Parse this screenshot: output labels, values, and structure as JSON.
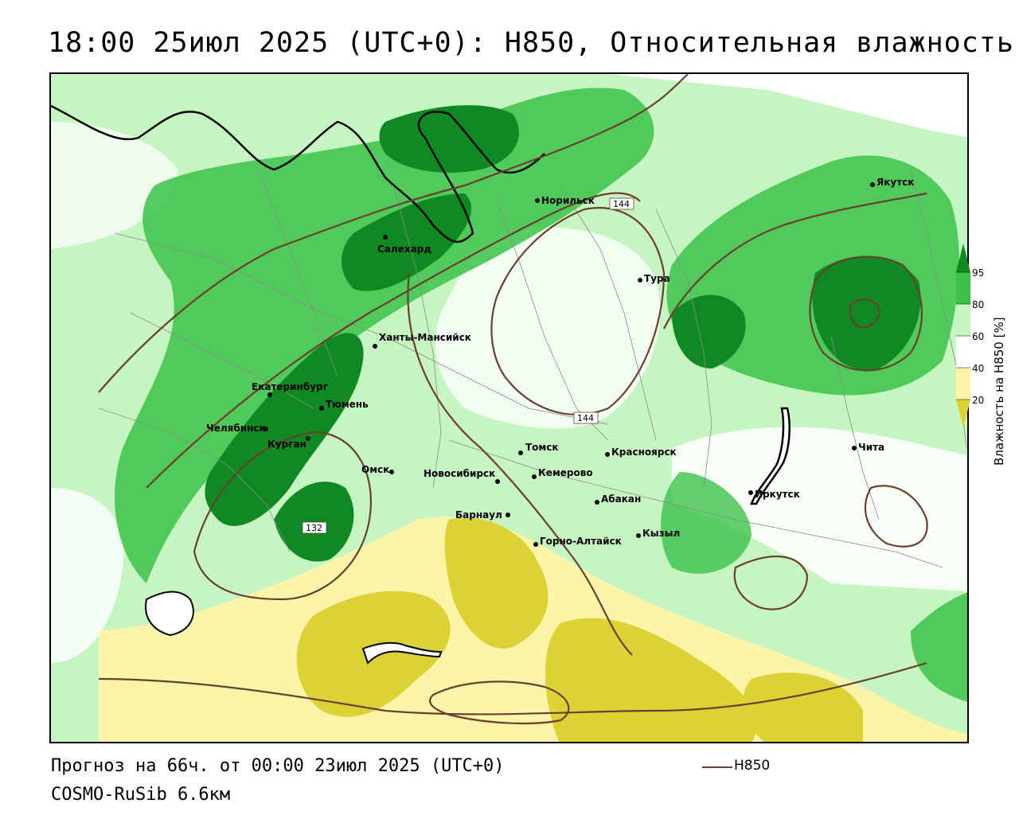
{
  "title": "18:00 25июл 2025 (UTC+0): H850, Относительная влажность",
  "footer": {
    "forecast": "Прогноз на 66ч. от 00:00 23июл 2025 (UTC+0)",
    "model": "COSMO-RuSib 6.6км"
  },
  "legend": {
    "line_label": "H850",
    "line_color": "#6a3f2f",
    "colorbar_title": "Влажность на H850 [%]",
    "ticks": [
      "95",
      "80",
      "60",
      "40",
      "20"
    ],
    "colors": {
      "dark_green": "#0f8a22",
      "green": "#3cc24a",
      "light_green": "#c7f5c1",
      "white": "#ffffff",
      "light_yellow": "#fcf4a9",
      "yellow": "#ddd235"
    }
  },
  "cities": [
    {
      "name": "Норильск"
    },
    {
      "name": "Якутск"
    },
    {
      "name": "Салехард"
    },
    {
      "name": "Тура"
    },
    {
      "name": "Ханты-Мансийск"
    },
    {
      "name": "Екатеринбург"
    },
    {
      "name": "Тюмень"
    },
    {
      "name": "Челябинск"
    },
    {
      "name": "Курган"
    },
    {
      "name": "Омск"
    },
    {
      "name": "Новосибирск"
    },
    {
      "name": "Томск"
    },
    {
      "name": "Кемерово"
    },
    {
      "name": "Красноярск"
    },
    {
      "name": "Барнаул"
    },
    {
      "name": "Абакан"
    },
    {
      "name": "Горно-Алтайск"
    },
    {
      "name": "Кызыл"
    },
    {
      "name": "Иркутск"
    },
    {
      "name": "Чита"
    }
  ],
  "isoline_labels": [
    "144",
    "144",
    "132"
  ]
}
